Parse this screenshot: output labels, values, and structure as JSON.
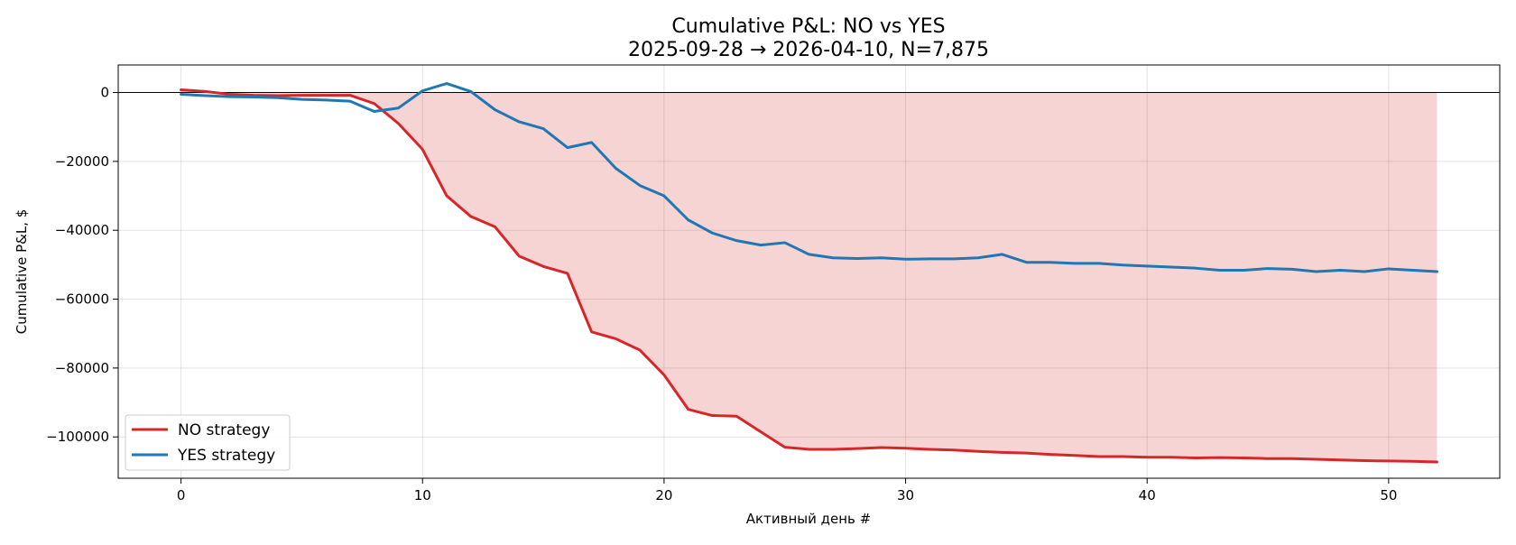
{
  "chart_data": {
    "type": "line",
    "title": "Cumulative P&L: NO vs YES",
    "subtitle": "2025-09-28 → 2026-04-10, N=7,875",
    "xlabel": "Активный день #",
    "ylabel": "Cumulative P&L, $",
    "xlim": [
      -2.6,
      54.6
    ],
    "ylim": [
      -112000,
      8000
    ],
    "x_ticks": [
      0,
      10,
      20,
      30,
      40,
      50
    ],
    "y_ticks": [
      0,
      -20000,
      -40000,
      -60000,
      -80000,
      -100000
    ],
    "x_tick_labels": [
      "0",
      "10",
      "20",
      "30",
      "40",
      "50"
    ],
    "y_tick_labels": [
      "0",
      "−20000",
      "−40000",
      "−60000",
      "−80000",
      "−100000"
    ],
    "grid": true,
    "legend_position": "lower-left",
    "zero_line": true,
    "fill_between": {
      "series": "NO strategy",
      "baseline": 0,
      "color": "#d62728",
      "alpha": 0.2
    },
    "x": [
      0,
      1,
      2,
      3,
      4,
      5,
      6,
      7,
      8,
      9,
      10,
      11,
      12,
      13,
      14,
      15,
      16,
      17,
      18,
      19,
      20,
      21,
      22,
      23,
      24,
      25,
      26,
      27,
      28,
      29,
      30,
      31,
      32,
      33,
      34,
      35,
      36,
      37,
      38,
      39,
      40,
      41,
      42,
      43,
      44,
      45,
      46,
      47,
      48,
      49,
      50,
      51,
      52
    ],
    "series": [
      {
        "name": "NO strategy",
        "color": "#d62728",
        "values": [
          800,
          300,
          -500,
          -800,
          -900,
          -800,
          -800,
          -800,
          -3200,
          -9000,
          -16500,
          -30000,
          -36000,
          -39000,
          -47500,
          -50500,
          -52500,
          -69500,
          -71500,
          -74800,
          -82000,
          -92000,
          -93800,
          -94000,
          -98500,
          -103000,
          -103600,
          -103600,
          -103400,
          -103100,
          -103300,
          -103600,
          -103800,
          -104200,
          -104500,
          -104700,
          -105100,
          -105400,
          -105700,
          -105700,
          -105900,
          -105900,
          -106100,
          -106000,
          -106100,
          -106300,
          -106300,
          -106500,
          -106700,
          -106900,
          -107000,
          -107100,
          -107300
        ]
      },
      {
        "name": "YES strategy",
        "color": "#1f77b4",
        "values": [
          -500,
          -900,
          -1200,
          -1300,
          -1500,
          -2000,
          -2200,
          -2500,
          -5500,
          -4500,
          500,
          2600,
          300,
          -5000,
          -8500,
          -10500,
          -16000,
          -14500,
          -22000,
          -27000,
          -30000,
          -37000,
          -40800,
          -43000,
          -44300,
          -43600,
          -47000,
          -48000,
          -48200,
          -48000,
          -48400,
          -48300,
          -48300,
          -48000,
          -47000,
          -49300,
          -49300,
          -49600,
          -49600,
          -50100,
          -50400,
          -50700,
          -51000,
          -51600,
          -51600,
          -51100,
          -51300,
          -52000,
          -51600,
          -52000,
          -51200,
          -51600,
          -52000
        ]
      }
    ]
  }
}
